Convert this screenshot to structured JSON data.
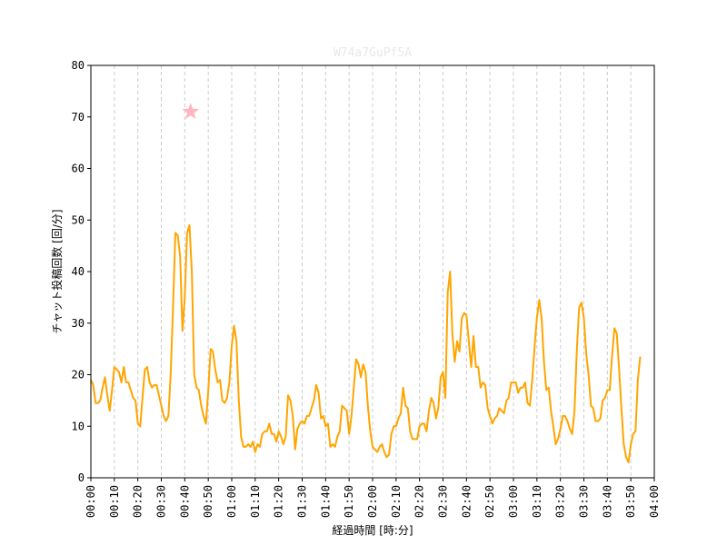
{
  "chart_data": {
    "type": "line",
    "title": "W74a7GuPf5A",
    "xlabel": "経過時間 [時:分]",
    "ylabel": "チャット投稿回数 [回/分]",
    "xlim": [
      0,
      240
    ],
    "ylim": [
      0,
      80
    ],
    "yticks": [
      0,
      10,
      20,
      30,
      40,
      50,
      60,
      70,
      80
    ],
    "xticks": [
      0,
      10,
      20,
      30,
      40,
      50,
      60,
      70,
      80,
      90,
      100,
      110,
      120,
      130,
      140,
      150,
      160,
      170,
      180,
      190,
      200,
      210,
      220,
      230,
      240
    ],
    "xtick_labels": [
      "00:00",
      "00:10",
      "00:20",
      "00:30",
      "00:40",
      "00:50",
      "01:00",
      "01:10",
      "01:20",
      "01:30",
      "01:40",
      "01:50",
      "02:00",
      "02:10",
      "02:20",
      "02:30",
      "02:40",
      "02:50",
      "03:00",
      "03:10",
      "03:20",
      "03:30",
      "03:40",
      "03:50",
      "04:00"
    ],
    "grid": "vertical dashed",
    "series": [
      {
        "color": "#ffa500",
        "x": [
          0,
          1,
          2,
          3,
          4,
          5,
          6,
          7,
          8,
          9,
          10,
          11,
          12,
          13,
          14,
          15,
          16,
          17,
          18,
          19,
          20,
          21,
          22,
          23,
          24,
          25,
          26,
          27,
          28,
          29,
          30,
          31,
          32,
          33,
          34,
          35,
          36,
          37,
          38,
          39,
          40,
          41,
          42,
          43,
          44,
          45,
          46,
          47,
          48,
          49,
          50,
          51,
          52,
          53,
          54,
          55,
          56,
          57,
          58,
          59,
          60,
          61,
          62,
          63,
          64,
          65,
          66,
          67,
          68,
          69,
          70,
          71,
          72,
          73,
          74,
          75,
          76,
          77,
          78,
          79,
          80,
          81,
          82,
          83,
          84,
          85,
          86,
          87,
          88,
          89,
          90,
          91,
          92,
          93,
          94,
          95,
          96,
          97,
          98,
          99,
          100,
          101,
          102,
          103,
          104,
          105,
          106,
          107,
          108,
          109,
          110,
          111,
          112,
          113,
          114,
          115,
          116,
          117,
          118,
          119,
          120,
          121,
          122,
          123,
          124,
          125,
          126,
          127,
          128,
          129,
          130,
          131,
          132,
          133,
          134,
          135,
          136,
          137,
          138,
          139,
          140,
          141,
          142,
          143,
          144,
          145,
          146,
          147,
          148,
          149,
          150,
          151,
          152,
          153,
          154,
          155,
          156,
          157,
          158,
          159,
          160,
          161,
          162,
          163,
          164,
          165,
          166,
          167,
          168,
          169,
          170,
          171,
          172,
          173,
          174,
          175,
          176,
          177,
          178,
          179,
          180,
          181,
          182,
          183,
          184,
          185,
          186,
          187,
          188,
          189,
          190,
          191,
          192,
          193,
          194,
          195,
          196,
          197,
          198,
          199,
          200,
          201,
          202,
          203,
          204,
          205,
          206,
          207,
          208,
          209,
          210,
          211,
          212,
          213,
          214,
          215,
          216,
          217,
          218,
          219,
          220,
          221,
          222,
          223,
          224,
          225,
          226,
          227,
          228,
          229,
          230,
          231,
          232,
          233,
          234
        ],
        "y": [
          19,
          18,
          14.5,
          14.5,
          15,
          17.5,
          19.5,
          16,
          13,
          17,
          21.5,
          21,
          20.5,
          18.5,
          21.5,
          18.5,
          18.5,
          17,
          15.5,
          15,
          10.5,
          10,
          15.5,
          21,
          21.5,
          18.5,
          17.5,
          18,
          18,
          16,
          14,
          12,
          11,
          12,
          20,
          33,
          47.5,
          47,
          43,
          28.5,
          35,
          47.5,
          49,
          40,
          20,
          17.5,
          17,
          14,
          12,
          10.5,
          17,
          25,
          24.5,
          21,
          18.5,
          19,
          15,
          14.5,
          15.5,
          18.5,
          25.5,
          29.5,
          26.5,
          15,
          8,
          6,
          6,
          6.5,
          6,
          7,
          5,
          6.5,
          6,
          8.5,
          9,
          9,
          10.5,
          8.5,
          8.5,
          7,
          9,
          8,
          6.5,
          8,
          16,
          15,
          12,
          5.5,
          9.5,
          10.5,
          11,
          10.5,
          12,
          12,
          13.5,
          15,
          18,
          16.5,
          11.5,
          12,
          10,
          10.5,
          6,
          6.5,
          6,
          8,
          9,
          14,
          13.5,
          13,
          8.5,
          12,
          17.5,
          23,
          22,
          19.5,
          22,
          20.5,
          14,
          9,
          6,
          5.5,
          5,
          6,
          6.5,
          5,
          4,
          4.5,
          8.5,
          10,
          10,
          11.5,
          12.5,
          17.5,
          14,
          13.5,
          9,
          7.5,
          7.5,
          7.5,
          10,
          10.5,
          10.5,
          9,
          13,
          15.5,
          14.5,
          11.5,
          13.5,
          19.5,
          20.5,
          15.5,
          36,
          40,
          28,
          22.5,
          26.5,
          24.5,
          31,
          32,
          31.5,
          26.5,
          21.5,
          27.5,
          21.5,
          21.5,
          17.5,
          18.5,
          18,
          13.5,
          12,
          10.5,
          11.5,
          12,
          13.5,
          13,
          12.5,
          15,
          15.5,
          18.5,
          18.5,
          18.5,
          16.5,
          17.5,
          17.5,
          18.5,
          14.5,
          14,
          19,
          25.5,
          31,
          34.5,
          31,
          22.5,
          17,
          17.5,
          13,
          10,
          6.5,
          7.5,
          9.5,
          12,
          12,
          11,
          9.5,
          8.5,
          13,
          25,
          33,
          34,
          31,
          24,
          20,
          14,
          13.5,
          11,
          11,
          11.5,
          15,
          15.5,
          17,
          17,
          23.5,
          29,
          28,
          21,
          13.5,
          6.5,
          4,
          3,
          6.5,
          8.5,
          9,
          19,
          23.5
        ]
      }
    ],
    "marker": {
      "shape": "star",
      "x": 42.5,
      "y": 71,
      "color": "#ffb6c1"
    }
  }
}
